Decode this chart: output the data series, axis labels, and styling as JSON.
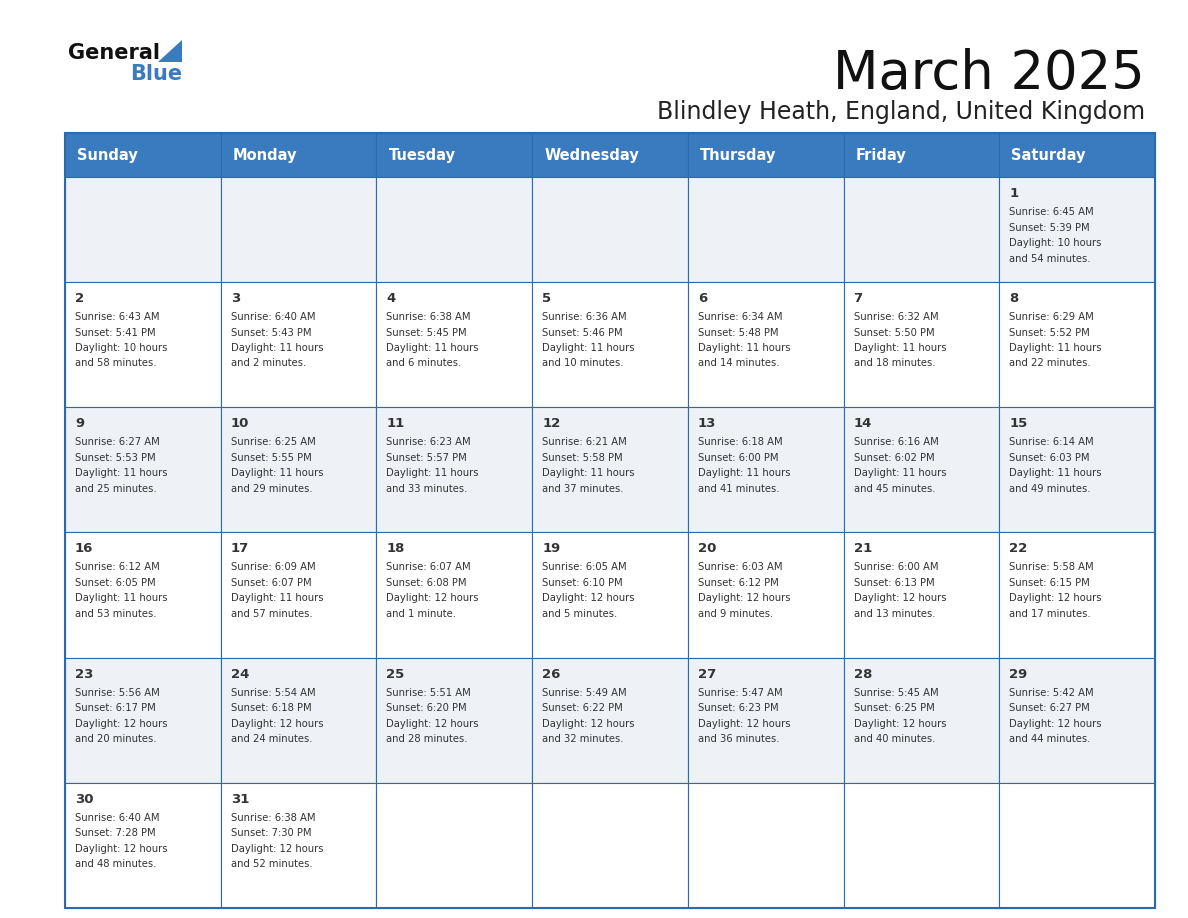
{
  "title": "March 2025",
  "subtitle": "Blindley Heath, England, United Kingdom",
  "header_bg": "#3a7abf",
  "header_text": "#ffffff",
  "cell_bg_odd": "#eef2f7",
  "cell_bg_even": "#ffffff",
  "border_color": "#2a6aad",
  "text_color": "#333333",
  "days_of_week": [
    "Sunday",
    "Monday",
    "Tuesday",
    "Wednesday",
    "Thursday",
    "Friday",
    "Saturday"
  ],
  "calendar": [
    [
      null,
      null,
      null,
      null,
      null,
      null,
      {
        "day": "1",
        "sunrise": "6:45 AM",
        "sunset": "5:39 PM",
        "daylight_a": "10 hours",
        "daylight_b": "and 54 minutes."
      }
    ],
    [
      {
        "day": "2",
        "sunrise": "6:43 AM",
        "sunset": "5:41 PM",
        "daylight_a": "10 hours",
        "daylight_b": "and 58 minutes."
      },
      {
        "day": "3",
        "sunrise": "6:40 AM",
        "sunset": "5:43 PM",
        "daylight_a": "11 hours",
        "daylight_b": "and 2 minutes."
      },
      {
        "day": "4",
        "sunrise": "6:38 AM",
        "sunset": "5:45 PM",
        "daylight_a": "11 hours",
        "daylight_b": "and 6 minutes."
      },
      {
        "day": "5",
        "sunrise": "6:36 AM",
        "sunset": "5:46 PM",
        "daylight_a": "11 hours",
        "daylight_b": "and 10 minutes."
      },
      {
        "day": "6",
        "sunrise": "6:34 AM",
        "sunset": "5:48 PM",
        "daylight_a": "11 hours",
        "daylight_b": "and 14 minutes."
      },
      {
        "day": "7",
        "sunrise": "6:32 AM",
        "sunset": "5:50 PM",
        "daylight_a": "11 hours",
        "daylight_b": "and 18 minutes."
      },
      {
        "day": "8",
        "sunrise": "6:29 AM",
        "sunset": "5:52 PM",
        "daylight_a": "11 hours",
        "daylight_b": "and 22 minutes."
      }
    ],
    [
      {
        "day": "9",
        "sunrise": "6:27 AM",
        "sunset": "5:53 PM",
        "daylight_a": "11 hours",
        "daylight_b": "and 25 minutes."
      },
      {
        "day": "10",
        "sunrise": "6:25 AM",
        "sunset": "5:55 PM",
        "daylight_a": "11 hours",
        "daylight_b": "and 29 minutes."
      },
      {
        "day": "11",
        "sunrise": "6:23 AM",
        "sunset": "5:57 PM",
        "daylight_a": "11 hours",
        "daylight_b": "and 33 minutes."
      },
      {
        "day": "12",
        "sunrise": "6:21 AM",
        "sunset": "5:58 PM",
        "daylight_a": "11 hours",
        "daylight_b": "and 37 minutes."
      },
      {
        "day": "13",
        "sunrise": "6:18 AM",
        "sunset": "6:00 PM",
        "daylight_a": "11 hours",
        "daylight_b": "and 41 minutes."
      },
      {
        "day": "14",
        "sunrise": "6:16 AM",
        "sunset": "6:02 PM",
        "daylight_a": "11 hours",
        "daylight_b": "and 45 minutes."
      },
      {
        "day": "15",
        "sunrise": "6:14 AM",
        "sunset": "6:03 PM",
        "daylight_a": "11 hours",
        "daylight_b": "and 49 minutes."
      }
    ],
    [
      {
        "day": "16",
        "sunrise": "6:12 AM",
        "sunset": "6:05 PM",
        "daylight_a": "11 hours",
        "daylight_b": "and 53 minutes."
      },
      {
        "day": "17",
        "sunrise": "6:09 AM",
        "sunset": "6:07 PM",
        "daylight_a": "11 hours",
        "daylight_b": "and 57 minutes."
      },
      {
        "day": "18",
        "sunrise": "6:07 AM",
        "sunset": "6:08 PM",
        "daylight_a": "12 hours",
        "daylight_b": "and 1 minute."
      },
      {
        "day": "19",
        "sunrise": "6:05 AM",
        "sunset": "6:10 PM",
        "daylight_a": "12 hours",
        "daylight_b": "and 5 minutes."
      },
      {
        "day": "20",
        "sunrise": "6:03 AM",
        "sunset": "6:12 PM",
        "daylight_a": "12 hours",
        "daylight_b": "and 9 minutes."
      },
      {
        "day": "21",
        "sunrise": "6:00 AM",
        "sunset": "6:13 PM",
        "daylight_a": "12 hours",
        "daylight_b": "and 13 minutes."
      },
      {
        "day": "22",
        "sunrise": "5:58 AM",
        "sunset": "6:15 PM",
        "daylight_a": "12 hours",
        "daylight_b": "and 17 minutes."
      }
    ],
    [
      {
        "day": "23",
        "sunrise": "5:56 AM",
        "sunset": "6:17 PM",
        "daylight_a": "12 hours",
        "daylight_b": "and 20 minutes."
      },
      {
        "day": "24",
        "sunrise": "5:54 AM",
        "sunset": "6:18 PM",
        "daylight_a": "12 hours",
        "daylight_b": "and 24 minutes."
      },
      {
        "day": "25",
        "sunrise": "5:51 AM",
        "sunset": "6:20 PM",
        "daylight_a": "12 hours",
        "daylight_b": "and 28 minutes."
      },
      {
        "day": "26",
        "sunrise": "5:49 AM",
        "sunset": "6:22 PM",
        "daylight_a": "12 hours",
        "daylight_b": "and 32 minutes."
      },
      {
        "day": "27",
        "sunrise": "5:47 AM",
        "sunset": "6:23 PM",
        "daylight_a": "12 hours",
        "daylight_b": "and 36 minutes."
      },
      {
        "day": "28",
        "sunrise": "5:45 AM",
        "sunset": "6:25 PM",
        "daylight_a": "12 hours",
        "daylight_b": "and 40 minutes."
      },
      {
        "day": "29",
        "sunrise": "5:42 AM",
        "sunset": "6:27 PM",
        "daylight_a": "12 hours",
        "daylight_b": "and 44 minutes."
      }
    ],
    [
      {
        "day": "30",
        "sunrise": "6:40 AM",
        "sunset": "7:28 PM",
        "daylight_a": "12 hours",
        "daylight_b": "and 48 minutes."
      },
      {
        "day": "31",
        "sunrise": "6:38 AM",
        "sunset": "7:30 PM",
        "daylight_a": "12 hours",
        "daylight_b": "and 52 minutes."
      },
      null,
      null,
      null,
      null,
      null
    ]
  ]
}
